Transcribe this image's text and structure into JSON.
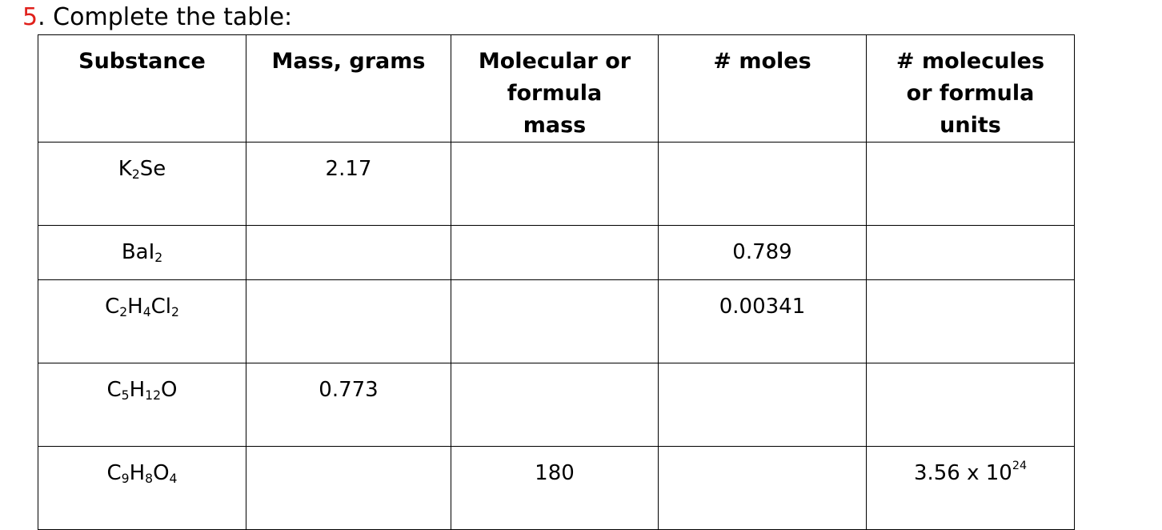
{
  "question": {
    "number": "5",
    "dot": ".",
    "text": " Complete the table:"
  },
  "table": {
    "headers": [
      "Substance",
      "Mass, grams",
      "Molecular or formula mass",
      "# moles",
      "# molecules or formula units"
    ],
    "rows": [
      {
        "substance": [
          {
            "t": "K"
          },
          {
            "sub": "2"
          },
          {
            "t": "Se"
          }
        ],
        "mass": "2.17",
        "molar_mass": "",
        "moles": "",
        "molecules": ""
      },
      {
        "substance": [
          {
            "t": "BaI"
          },
          {
            "sub": "2"
          }
        ],
        "mass": "",
        "molar_mass": "",
        "moles": "0.789",
        "molecules": ""
      },
      {
        "substance": [
          {
            "t": "C"
          },
          {
            "sub": "2"
          },
          {
            "t": "H"
          },
          {
            "sub": "4"
          },
          {
            "t": "Cl"
          },
          {
            "sub": "2"
          }
        ],
        "mass": "",
        "molar_mass": "",
        "moles": "0.00341",
        "molecules": ""
      },
      {
        "substance": [
          {
            "t": "C"
          },
          {
            "sub": "5"
          },
          {
            "t": "H"
          },
          {
            "sub": "12"
          },
          {
            "t": "O"
          }
        ],
        "mass": "0.773",
        "molar_mass": "",
        "moles": "",
        "molecules": ""
      },
      {
        "substance": [
          {
            "t": "C"
          },
          {
            "sub": "9"
          },
          {
            "t": "H"
          },
          {
            "sub": "8"
          },
          {
            "t": "O"
          },
          {
            "sub": "4"
          }
        ],
        "mass": "",
        "molar_mass": "180",
        "moles": "",
        "molecules": "3.56 x 10",
        "molecules_exp": "24"
      }
    ]
  },
  "colors": {
    "question_number": "#e0201b",
    "border": "#000000"
  }
}
